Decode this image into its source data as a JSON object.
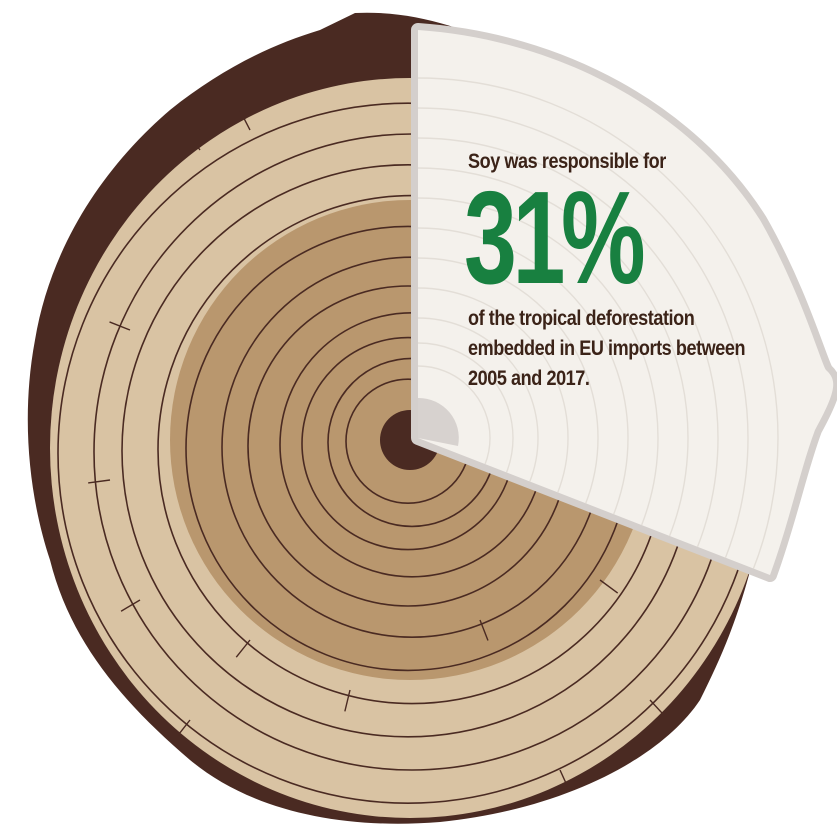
{
  "infographic": {
    "lead": "Soy was responsible for",
    "stat": "31%",
    "rest_lines": [
      "of the tropical deforestation",
      "embedded in EU imports between",
      "2005 and 2017."
    ],
    "share_fraction": 0.31
  },
  "colors": {
    "bark": "#4a2a22",
    "outer_wood": "#d9c3a3",
    "inner_wood": "#b9976e",
    "ring_line": "#4a2a22",
    "pith": "#4a2a22",
    "slice_fill": "#f4f1ec",
    "slice_edge": "#d4cfcc",
    "slice_ring": "#e3ded7",
    "slice_core": "#d7d2cf",
    "stat": "#188040",
    "text": "#3b2318"
  }
}
